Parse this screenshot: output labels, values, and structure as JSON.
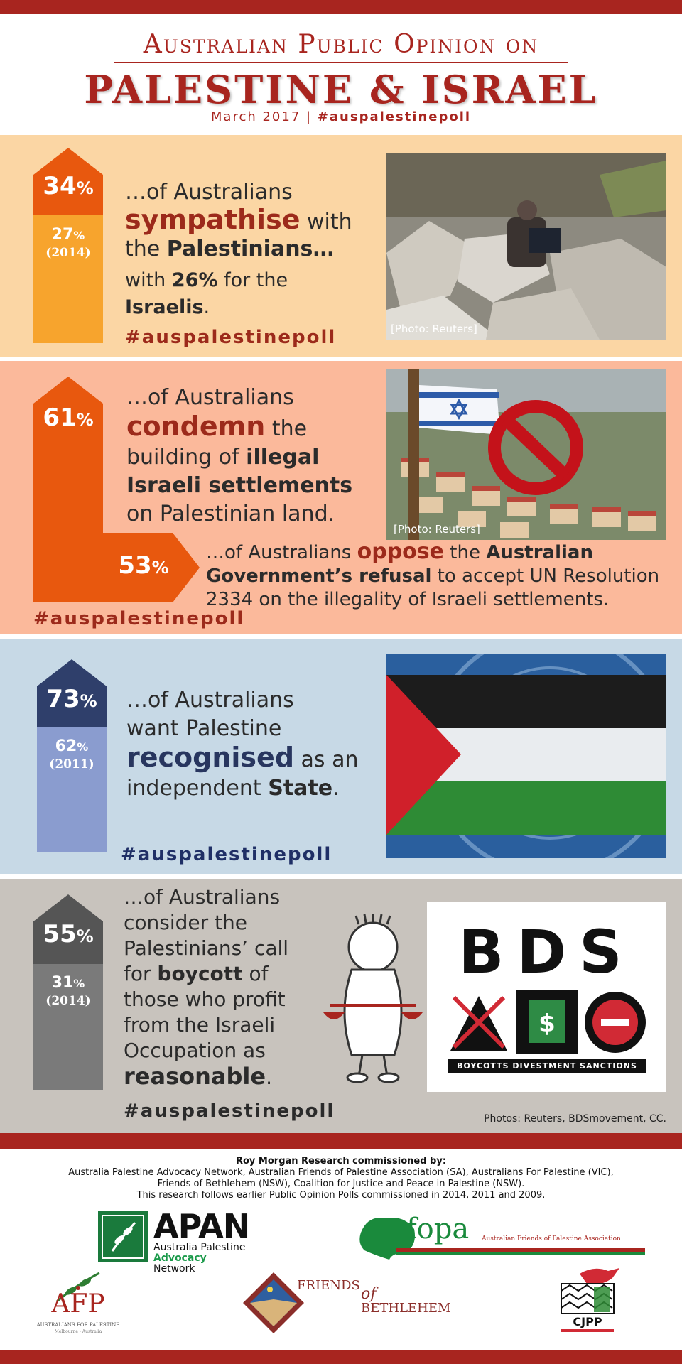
{
  "header": {
    "title_line1": "Australian Public Opinion on",
    "title_line2": "PALESTINE & ISRAEL",
    "date": "March 2017 |",
    "hashtag": "#auspalestinepoll"
  },
  "panel1": {
    "pct_main": "34",
    "pct_prev": "27",
    "pct_prev_year": "(2014)",
    "pct_sign": "%",
    "line1": "…of Australians",
    "keyword": "sympathise",
    "line2_rest": " with",
    "line3_pre": "the ",
    "line3_bold": "Palestinians…",
    "line4_pre": "with ",
    "line4_bold": "26%",
    "line4_post": " for the",
    "line5_bold": "Israelis",
    "line5_post": ".",
    "hashtag": "#auspalestinepoll",
    "photo_caption": "[Photo: Reuters]"
  },
  "panel2": {
    "pct_main": "61",
    "pct_second": "53",
    "pct_sign": "%",
    "line1": "…of Australians",
    "keyword": "condemn",
    "line2_rest": " the",
    "line3_pre": "building of ",
    "line3_bold": "illegal",
    "line4_bold": "Israeli settlements",
    "line5": "on Palestinian land.",
    "second_line1_pre": "…of Australians ",
    "second_keyword": "oppose",
    "second_line1_mid": " the ",
    "second_line1_bold": "Australian",
    "second_line2_bold": "Government’s refusal",
    "second_line2_post": " to accept UN Resolution",
    "second_line3": "2334 on the illegality of Israeli settlements.",
    "hashtag": "#auspalestinepoll",
    "photo_caption": "[Photo: Reuters]"
  },
  "panel3": {
    "pct_main": "73",
    "pct_prev": "62",
    "pct_prev_year": "(2011)",
    "pct_sign": "%",
    "line1": "…of Australians",
    "line2": "want Palestine",
    "keyword": "recognised",
    "line3_rest": " as an",
    "line4_pre": "independent ",
    "line4_bold": "State",
    "line4_post": ".",
    "hashtag": "#auspalestinepoll"
  },
  "panel4": {
    "pct_main": "55",
    "pct_prev": "31",
    "pct_prev_year": "(2014)",
    "pct_sign": "%",
    "line1": "…of Australians",
    "line2": "consider the",
    "line3": "Palestinians’ call",
    "line4_pre": "for ",
    "line4_bold": "boycott",
    "line4_post": " of",
    "line5": "those who profit",
    "line6": "from the Israeli",
    "line7": "Occupation as",
    "line8_bold": "reasonable",
    "line8_post": ".",
    "hashtag": "#auspalestinepoll",
    "bds_letters": "BDS",
    "bds_caption": "BOYCOTTS DIVESTMENT SANCTIONS",
    "photo_credits": "Photos: Reuters, BDSmovement,  CC."
  },
  "footer": {
    "commissioned": "Roy Morgan Research commissioned by:",
    "line1": "Australia  Palestine Advocacy Network,  Australian Friends of Palestine Association (SA), Australians For Palestine (VIC),",
    "line2": "Friends of Bethlehem  (NSW), Coalition  for Justice and Peace in Palestine (NSW).",
    "line3": "This research follows earlier  Public Opinion Polls commissioned  in 2014, 2011 and 2009.",
    "apan_short": "APAN",
    "apan_l1": "Australia Palestine",
    "apan_l2a": "Advocacy",
    "apan_l2b": " Network",
    "afopa": "afopa",
    "afopa_full": "Australian Friends of Palestine Association",
    "afp": "AFP",
    "afp_sub": "AUSTRALIANS FOR PALESTINE",
    "afp_sub2": "Melbourne - Australia",
    "fob_1": "FRIENDS",
    "fob_2": "of",
    "fob_3": "BETHLEHEM",
    "cjpp": "CJPP"
  },
  "colors": {
    "brand_red": "#a8251f",
    "orange_dark": "#e8580e",
    "orange_light": "#f7a42d",
    "navy": "#2f3f6b",
    "periwinkle": "#8a9ccf",
    "grey_dark": "#555555",
    "grey_light": "#7a7a7a"
  }
}
